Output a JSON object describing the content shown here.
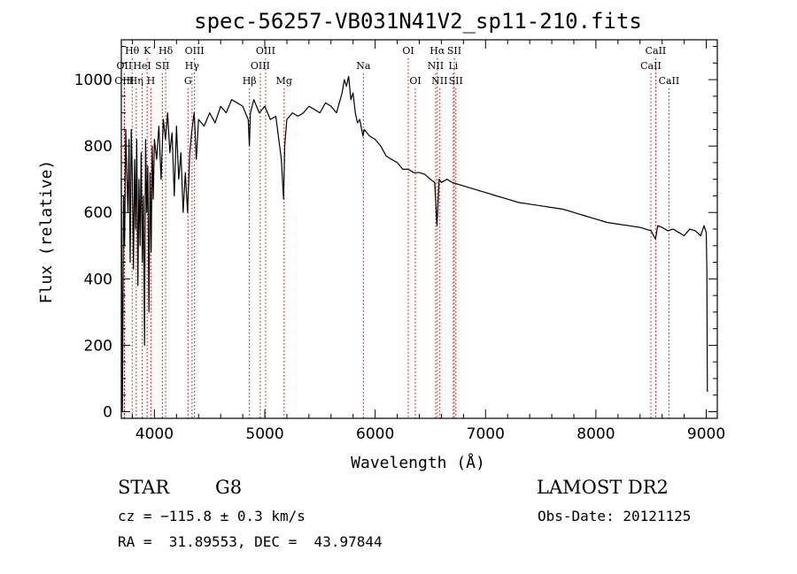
{
  "chart_data": {
    "type": "line",
    "title": "spec-56257-VB031N41V2_sp11-210.fits",
    "xlabel": "Wavelength (Å)",
    "ylabel": "Flux (relative)",
    "xlim": [
      3700,
      9100
    ],
    "ylim": [
      -20,
      1120
    ],
    "xticks": [
      4000,
      5000,
      6000,
      7000,
      8000,
      9000
    ],
    "yticks": [
      0,
      200,
      400,
      600,
      800,
      1000
    ],
    "grid": false,
    "series": [
      {
        "values_x": [
          3700,
          3710,
          3720,
          3730,
          3740,
          3750,
          3760,
          3770,
          3780,
          3790,
          3800,
          3810,
          3820,
          3830,
          3840,
          3850,
          3860,
          3870,
          3880,
          3890,
          3900,
          3910,
          3920,
          3930,
          3940,
          3950,
          3960,
          3970,
          3980,
          3990,
          4000,
          4020,
          4040,
          4060,
          4080,
          4100,
          4120,
          4140,
          4160,
          4180,
          4200,
          4220,
          4240,
          4260,
          4280,
          4300,
          4320,
          4340,
          4360,
          4380,
          4400,
          4450,
          4500,
          4550,
          4600,
          4650,
          4700,
          4750,
          4800,
          4850,
          4860,
          4870,
          4900,
          4950,
          5000,
          5050,
          5100,
          5150,
          5170,
          5180,
          5200,
          5250,
          5300,
          5350,
          5400,
          5450,
          5500,
          5550,
          5600,
          5650,
          5700,
          5720,
          5740,
          5760,
          5780,
          5800,
          5820,
          5840,
          5860,
          5890,
          5900,
          5950,
          6000,
          6050,
          6100,
          6150,
          6200,
          6250,
          6300,
          6350,
          6400,
          6450,
          6500,
          6540,
          6560,
          6580,
          6600,
          6650,
          6700,
          6800,
          6900,
          7000,
          7100,
          7200,
          7300,
          7400,
          7500,
          7600,
          7700,
          7800,
          7900,
          8000,
          8100,
          8200,
          8300,
          8400,
          8500,
          8540,
          8560,
          8600,
          8650,
          8700,
          8750,
          8800,
          8850,
          8900,
          8950,
          8980,
          9000,
          9005,
          9010
        ],
        "values_y": [
          700,
          0,
          650,
          500,
          850,
          720,
          600,
          820,
          450,
          850,
          700,
          430,
          760,
          550,
          820,
          380,
          700,
          500,
          780,
          450,
          650,
          200,
          820,
          600,
          740,
          300,
          720,
          480,
          800,
          640,
          820,
          760,
          860,
          700,
          880,
          820,
          900,
          780,
          840,
          650,
          860,
          700,
          780,
          600,
          720,
          600,
          780,
          850,
          900,
          760,
          880,
          860,
          900,
          870,
          920,
          900,
          940,
          930,
          920,
          880,
          800,
          900,
          940,
          900,
          920,
          880,
          890,
          760,
          640,
          800,
          880,
          900,
          890,
          900,
          920,
          910,
          900,
          930,
          920,
          900,
          960,
          1000,
          980,
          1010,
          940,
          960,
          900,
          870,
          880,
          830,
          850,
          830,
          820,
          800,
          770,
          760,
          750,
          730,
          730,
          720,
          720,
          715,
          700,
          690,
          560,
          700,
          690,
          700,
          690,
          680,
          670,
          660,
          650,
          640,
          630,
          625,
          620,
          615,
          610,
          600,
          590,
          580,
          570,
          565,
          560,
          555,
          545,
          520,
          560,
          555,
          545,
          550,
          540,
          530,
          550,
          545,
          530,
          560,
          540,
          430,
          60
        ],
        "color": "#000000"
      }
    ],
    "lines": [
      {
        "label": "Hθ",
        "wavelength": 3798,
        "row": 1
      },
      {
        "label": "K",
        "wavelength": 3934,
        "row": 1
      },
      {
        "label": "Hδ",
        "wavelength": 4102,
        "row": 1
      },
      {
        "label": "OIII",
        "wavelength": 4363,
        "row": 1
      },
      {
        "label": "OIII",
        "wavelength": 5007,
        "row": 1
      },
      {
        "label": "OI",
        "wavelength": 6300,
        "row": 1
      },
      {
        "label": "Hα",
        "wavelength": 6563,
        "row": 1
      },
      {
        "label": "SII",
        "wavelength": 6717,
        "row": 1
      },
      {
        "label": "CaII",
        "wavelength": 8542,
        "row": 1
      },
      {
        "label": "OII",
        "wavelength": 3727,
        "row": 2
      },
      {
        "label": "HeI",
        "wavelength": 3889,
        "row": 2
      },
      {
        "label": "SII",
        "wavelength": 4072,
        "row": 2
      },
      {
        "label": "Hγ",
        "wavelength": 4341,
        "row": 2
      },
      {
        "label": "OIII",
        "wavelength": 4959,
        "row": 2
      },
      {
        "label": "Na",
        "wavelength": 5893,
        "row": 2
      },
      {
        "label": "NII",
        "wavelength": 6548,
        "row": 2
      },
      {
        "label": "Li",
        "wavelength": 6708,
        "row": 2
      },
      {
        "label": "CaII",
        "wavelength": 8498,
        "row": 2
      },
      {
        "label": "OIII",
        "wavelength": 3727,
        "row": 3
      },
      {
        "label": "Hη",
        "wavelength": 3835,
        "row": 3
      },
      {
        "label": "H",
        "wavelength": 3968,
        "row": 3
      },
      {
        "label": "G",
        "wavelength": 4304,
        "row": 3
      },
      {
        "label": "Hβ",
        "wavelength": 4861,
        "row": 3
      },
      {
        "label": "Mg",
        "wavelength": 5175,
        "row": 3
      },
      {
        "label": "OI",
        "wavelength": 6364,
        "row": 3
      },
      {
        "label": "NII",
        "wavelength": 6583,
        "row": 3
      },
      {
        "label": "SII",
        "wavelength": 6731,
        "row": 3
      },
      {
        "label": "CaII",
        "wavelength": 8662,
        "row": 3
      }
    ],
    "line_color": "#c00000"
  },
  "info": {
    "object_class": "STAR",
    "subclass": "G8",
    "survey": "LAMOST DR2",
    "redshift": "cz = −115.8 ± 0.3 km/s",
    "obs_date": "Obs-Date: 20121125",
    "coords": "RA =  31.89553, DEC =  43.97844"
  }
}
